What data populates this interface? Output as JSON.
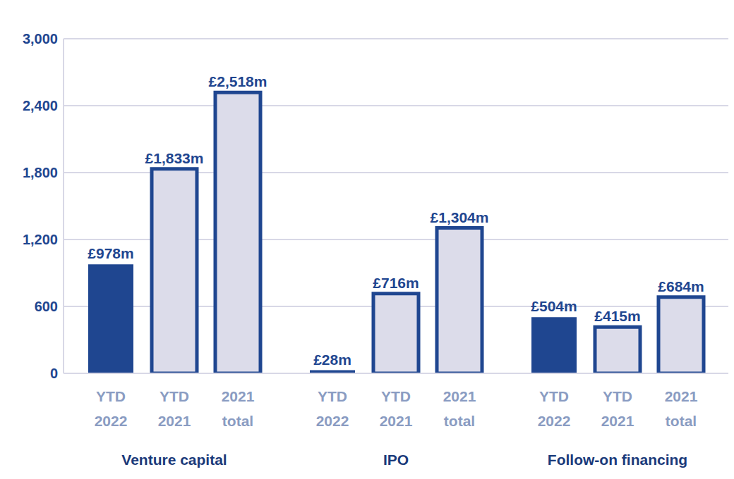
{
  "chart_data": {
    "type": "bar",
    "categories": [
      "Venture capital",
      "IPO",
      "Follow-on financing"
    ],
    "series": [
      {
        "name": "YTD 2022",
        "color": "#1f4690",
        "values": [
          978,
          28,
          504
        ],
        "value_labels": [
          "£978m",
          "£28m",
          "£504m"
        ]
      },
      {
        "name": "YTD 2021",
        "color": "#dcdcea",
        "values": [
          1833,
          716,
          415
        ],
        "value_labels": [
          "£1,833m",
          "£716m",
          "£415m"
        ]
      },
      {
        "name": "2021 total",
        "color": "#dcdcea",
        "values": [
          2518,
          1304,
          684
        ],
        "value_labels": [
          "£2,518m",
          "£1,304m",
          "£684m"
        ]
      }
    ],
    "ylim": [
      0,
      3000
    ],
    "yticks": [
      0,
      600,
      {
        "value": 1200,
        "label": "1,200"
      },
      {
        "value": 1800,
        "label": "1,800"
      },
      {
        "value": 2400,
        "label": "2,400"
      },
      {
        "value": 3000,
        "label": "3,000"
      }
    ],
    "grid": true,
    "data_labels": true
  }
}
